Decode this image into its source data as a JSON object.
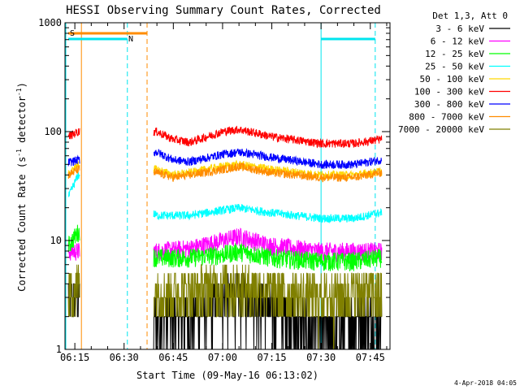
{
  "chart_data": {
    "type": "line",
    "title": "HESSI Observing Summary Count Rates, Corrected",
    "xlabel": "Start Time (09-May-16 06:13:02)",
    "ylabel": "Corrected Count Rate (s",
    "ylabel_unit": "detector",
    "ylabel_exp": "-1",
    "yscale": "log",
    "ylim": [
      1,
      1000
    ],
    "xlim": [
      "06:12:00",
      "07:51:00"
    ],
    "x_ticks": [
      "06:15",
      "06:30",
      "06:45",
      "07:00",
      "07:15",
      "07:30",
      "07:45"
    ],
    "y_ticks": [
      "1",
      "10",
      "100",
      "1000"
    ],
    "legend_title": "Det 1,3, Att 0",
    "legend_position": "right",
    "timestamp": "4-Apr-2018 04:05",
    "segments_with_data": [
      [
        "06:13:02",
        "06:16:30"
      ],
      [
        "06:39:00",
        "07:48:30"
      ]
    ],
    "markers": {
      "solid_vertical_orange": "06:17:00",
      "dashed_vertical_cyan": [
        "06:31:00",
        "07:46:30"
      ],
      "dashed_vertical_orange": "06:37:00",
      "solid_vertical_cyan": "07:30:00",
      "saa_label": "S",
      "saa_bar": [
        "06:13:00",
        "06:37:00"
      ],
      "night_label": "N",
      "night_bars": [
        [
          "06:13:00",
          "06:31:00"
        ],
        [
          "07:30:00",
          "07:46:30"
        ]
      ]
    },
    "series": [
      {
        "name": "3 - 6 keV",
        "color": "#000000",
        "x": [
          "06:13",
          "06:16",
          "06:40",
          "06:50",
          "07:00",
          "07:10",
          "07:20",
          "07:30",
          "07:40",
          "07:48"
        ],
        "values": [
          3,
          3,
          2,
          2,
          3,
          3,
          2,
          1.5,
          2,
          2
        ]
      },
      {
        "name": "6 - 12 keV",
        "color": "#ff00ff",
        "x": [
          "06:13",
          "06:16",
          "06:40",
          "06:50",
          "07:00",
          "07:05",
          "07:15",
          "07:30",
          "07:40",
          "07:48"
        ],
        "values": [
          8,
          8,
          8,
          8.5,
          10,
          11,
          9,
          8,
          8,
          8
        ]
      },
      {
        "name": "12 - 25 keV",
        "color": "#00ff00",
        "x": [
          "06:13",
          "06:16",
          "06:40",
          "06:50",
          "07:00",
          "07:05",
          "07:15",
          "07:30",
          "07:40",
          "07:48"
        ],
        "values": [
          9,
          12,
          7,
          7,
          7.5,
          8,
          7,
          6.5,
          6.5,
          7
        ]
      },
      {
        "name": "25 - 50 keV",
        "color": "#00ffff",
        "x": [
          "06:13",
          "06:16",
          "06:40",
          "06:50",
          "07:00",
          "07:05",
          "07:15",
          "07:30",
          "07:40",
          "07:48"
        ],
        "values": [
          25,
          40,
          17,
          17,
          19,
          20,
          18,
          16,
          16,
          18
        ]
      },
      {
        "name": "50 - 100 keV",
        "color": "#ffd700",
        "x": [
          "06:13",
          "06:16",
          "06:40",
          "06:45",
          "06:50",
          "07:00",
          "07:05",
          "07:15",
          "07:30",
          "07:40",
          "07:48"
        ],
        "values": [
          40,
          50,
          45,
          40,
          42,
          48,
          50,
          45,
          40,
          40,
          43
        ]
      },
      {
        "name": "100 - 300 keV",
        "color": "#ff0000",
        "x": [
          "06:13",
          "06:16",
          "06:40",
          "06:45",
          "06:50",
          "07:00",
          "07:05",
          "07:15",
          "07:30",
          "07:40",
          "07:48"
        ],
        "values": [
          90,
          100,
          100,
          85,
          80,
          100,
          105,
          90,
          78,
          78,
          85
        ]
      },
      {
        "name": "300 - 800 keV",
        "color": "#0000ff",
        "x": [
          "06:13",
          "06:16",
          "06:40",
          "06:45",
          "06:50",
          "07:00",
          "07:05",
          "07:15",
          "07:30",
          "07:40",
          "07:48"
        ],
        "values": [
          52,
          55,
          65,
          55,
          53,
          62,
          65,
          58,
          50,
          50,
          55
        ]
      },
      {
        "name": "800 - 7000 keV",
        "color": "#ff8c00",
        "x": [
          "06:13",
          "06:16",
          "06:40",
          "06:45",
          "06:50",
          "07:00",
          "07:05",
          "07:15",
          "07:30",
          "07:40",
          "07:48"
        ],
        "values": [
          40,
          45,
          42,
          38,
          40,
          45,
          48,
          42,
          38,
          38,
          42
        ]
      },
      {
        "name": "7000 - 20000 keV",
        "color": "#808000",
        "x": [
          "06:13",
          "06:16",
          "06:40",
          "06:50",
          "07:00",
          "07:05",
          "07:15",
          "07:30",
          "07:40",
          "07:48"
        ],
        "values": [
          3.5,
          4,
          3.5,
          3.5,
          4,
          4,
          3.5,
          3,
          3.5,
          3.5
        ]
      }
    ]
  }
}
